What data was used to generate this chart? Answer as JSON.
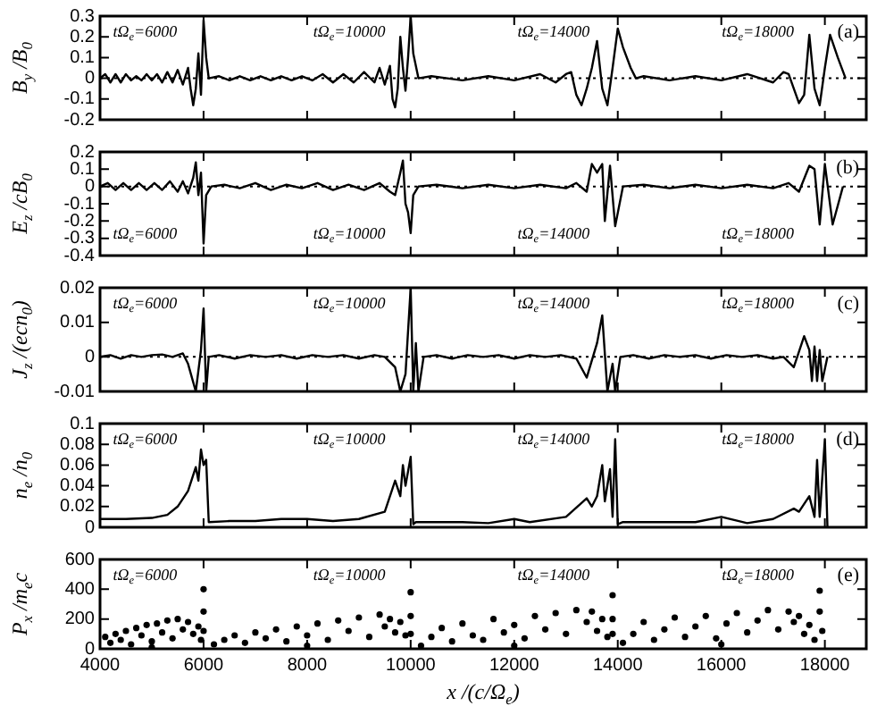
{
  "chart_data": [
    {
      "type": "line",
      "ylabel": "B$_{y}$ /B$_{0}$",
      "xlim": [
        4000,
        18800
      ],
      "xticks": [
        4000,
        6000,
        8000,
        10000,
        12000,
        14000,
        16000,
        18000
      ],
      "ylim": [
        -0.2,
        0.3
      ],
      "yticks": [
        -0.2,
        -0.1,
        0,
        0.1,
        0.2,
        0.3
      ],
      "tick_labels": "y",
      "grid": false,
      "legend": false,
      "marker": "none",
      "line_style": "solid",
      "ref_lines": [
        {
          "axis": "y",
          "value": 0,
          "line_style": "dotted"
        }
      ],
      "annotations": [
        "tΩ$_{e}$=6000",
        "tΩ$_{e}$=10000",
        "tΩ$_{e}$=14000",
        "tΩ$_{e}$=18000",
        "(a)"
      ],
      "series": [
        {
          "color": "#000000",
          "x": [
            4000,
            4100,
            4200,
            4300,
            4400,
            4500,
            4600,
            4700,
            4800,
            4900,
            5000,
            5100,
            5200,
            5300,
            5400,
            5500,
            5600,
            5700,
            5750,
            5800,
            5850,
            5900,
            5950,
            6000,
            6050,
            6100,
            6300,
            6500,
            6700,
            6900,
            7100,
            7300,
            7500,
            7700,
            7900,
            8100,
            8300,
            8500,
            8700,
            8900,
            9100,
            9300,
            9400,
            9500,
            9600,
            9650,
            9700,
            9750,
            9800,
            9850,
            9900,
            9950,
            10000,
            10050,
            10150,
            10400,
            11000,
            11500,
            12000,
            12500,
            12800,
            13000,
            13100,
            13200,
            13300,
            13400,
            13500,
            13600,
            13700,
            13800,
            13900,
            14000,
            14100,
            14250,
            14350,
            14500,
            15000,
            15500,
            16000,
            16500,
            17000,
            17200,
            17300,
            17400,
            17500,
            17600,
            17700,
            17800,
            17900,
            18000,
            18100,
            18250,
            18400
          ],
          "values": [
            0,
            0.02,
            -0.02,
            0.02,
            -0.02,
            0.02,
            -0.01,
            0.01,
            -0.01,
            0.02,
            -0.01,
            0.02,
            -0.02,
            0.03,
            -0.02,
            0.04,
            -0.03,
            0.05,
            -0.05,
            -0.13,
            -0.05,
            0.12,
            -0.08,
            0.28,
            0.1,
            0,
            0.01,
            -0.01,
            0.01,
            -0.01,
            0.01,
            -0.01,
            0.01,
            -0.01,
            0.01,
            -0.01,
            0.02,
            -0.02,
            0.02,
            -0.02,
            0.03,
            -0.02,
            0.05,
            -0.03,
            0.06,
            -0.1,
            -0.14,
            -0.05,
            0.2,
            0.05,
            -0.06,
            0.1,
            0.3,
            0.12,
            0,
            0.01,
            -0.01,
            0.01,
            -0.01,
            0.02,
            -0.02,
            0.02,
            0.03,
            -0.08,
            -0.13,
            -0.05,
            0.05,
            0.18,
            -0.05,
            -0.13,
            0.05,
            0.24,
            0.15,
            0.05,
            0,
            0.01,
            -0.01,
            0.01,
            -0.01,
            0.02,
            -0.02,
            0.03,
            0.02,
            -0.05,
            -0.12,
            -0.08,
            0.21,
            -0.05,
            -0.13,
            0.05,
            0.21,
            0.1,
            0
          ]
        }
      ]
    },
    {
      "type": "line",
      "ylabel": "E$_{z}$ /cB$_{0}$",
      "xlim": [
        4000,
        18800
      ],
      "xticks": [
        4000,
        6000,
        8000,
        10000,
        12000,
        14000,
        16000,
        18000
      ],
      "ylim": [
        -0.4,
        0.2
      ],
      "yticks": [
        -0.4,
        -0.3,
        -0.2,
        -0.1,
        0,
        0.1,
        0.2
      ],
      "tick_labels": "y",
      "grid": false,
      "legend": false,
      "marker": "none",
      "line_style": "solid",
      "ref_lines": [
        {
          "axis": "y",
          "value": 0,
          "line_style": "dotted"
        }
      ],
      "annotations": [
        "tΩ$_{e}$=6000",
        "tΩ$_{e}$=10000",
        "tΩ$_{e}$=14000",
        "tΩ$_{e}$=18000",
        "(b)"
      ],
      "series": [
        {
          "color": "#000000",
          "x": [
            4000,
            4150,
            4300,
            4450,
            4600,
            4750,
            4900,
            5050,
            5200,
            5350,
            5500,
            5600,
            5700,
            5800,
            5850,
            5900,
            5950,
            6000,
            6050,
            6150,
            6400,
            6700,
            7000,
            7300,
            7600,
            7900,
            8200,
            8500,
            8800,
            9100,
            9400,
            9600,
            9700,
            9800,
            9850,
            9900,
            9950,
            10000,
            10050,
            10150,
            10500,
            11000,
            11500,
            12000,
            12500,
            13000,
            13200,
            13400,
            13500,
            13600,
            13700,
            13750,
            13850,
            13950,
            14100,
            14500,
            15000,
            15500,
            16000,
            16500,
            17000,
            17300,
            17500,
            17700,
            17800,
            17900,
            18000,
            18150,
            18350
          ],
          "values": [
            0,
            0.02,
            -0.02,
            0.02,
            -0.02,
            0.02,
            -0.02,
            0.02,
            -0.02,
            0.03,
            -0.03,
            0.03,
            -0.04,
            0.05,
            0.14,
            -0.05,
            0.08,
            -0.33,
            -0.05,
            0,
            0.01,
            -0.01,
            0.02,
            -0.02,
            0.01,
            -0.01,
            0.02,
            -0.02,
            0.01,
            -0.02,
            0.02,
            -0.03,
            -0.05,
            0.08,
            0.15,
            -0.1,
            -0.15,
            -0.27,
            -0.05,
            0,
            0.01,
            -0.01,
            0.01,
            -0.01,
            0.01,
            -0.01,
            0.02,
            -0.03,
            0.13,
            0.08,
            0.13,
            -0.2,
            0.12,
            -0.23,
            0,
            0.01,
            -0.01,
            0.01,
            -0.01,
            0.01,
            -0.01,
            0.02,
            -0.03,
            0.12,
            0.1,
            -0.22,
            0.13,
            -0.22,
            0
          ]
        }
      ]
    },
    {
      "type": "line",
      "ylabel": "J$_{z}$ /(ecn$_{0}$)",
      "xlim": [
        4000,
        18800
      ],
      "xticks": [
        4000,
        6000,
        8000,
        10000,
        12000,
        14000,
        16000,
        18000
      ],
      "ylim": [
        -0.01,
        0.02
      ],
      "yticks": [
        -0.01,
        0,
        0.01,
        0.02
      ],
      "tick_labels": "y",
      "grid": false,
      "legend": false,
      "marker": "none",
      "line_style": "solid",
      "ref_lines": [
        {
          "axis": "y",
          "value": 0,
          "line_style": "dotted"
        }
      ],
      "annotations": [
        "tΩ$_{e}$=6000",
        "tΩ$_{e}$=10000",
        "tΩ$_{e}$=14000",
        "tΩ$_{e}$=18000",
        "(c)"
      ],
      "series": [
        {
          "color": "#000000",
          "x": [
            4000,
            4200,
            4400,
            4600,
            4800,
            5000,
            5200,
            5400,
            5600,
            5700,
            5850,
            5950,
            6000,
            6050,
            6100,
            6300,
            6600,
            6900,
            7200,
            7500,
            7800,
            8100,
            8400,
            8700,
            9000,
            9300,
            9500,
            9700,
            9800,
            9900,
            10000,
            10050,
            10100,
            10150,
            10250,
            10500,
            10800,
            11100,
            11400,
            11700,
            12000,
            12300,
            12600,
            12900,
            13200,
            13400,
            13600,
            13700,
            13800,
            13900,
            13950,
            14050,
            14300,
            14600,
            14900,
            15200,
            15500,
            15800,
            16100,
            16400,
            16700,
            17000,
            17200,
            17400,
            17600,
            17700,
            17750,
            17800,
            17850,
            17900,
            17950,
            18050
          ],
          "values": [
            0,
            0.0005,
            -0.0005,
            0.0005,
            0,
            0.0005,
            0.0007,
            0,
            0.001,
            -0.002,
            -0.01,
            0.002,
            0.014,
            -0.01,
            0,
            0.0005,
            -0.0005,
            0.0005,
            0,
            0.0005,
            -0.0005,
            0.0005,
            0,
            0.0005,
            -0.0005,
            0.0005,
            0,
            -0.003,
            -0.01,
            -0.005,
            0.02,
            -0.01,
            0.004,
            -0.01,
            0,
            0.0005,
            -0.0005,
            0.0005,
            0,
            0.0005,
            -0.0005,
            0.0005,
            0,
            0.0005,
            -0.0005,
            -0.006,
            0.004,
            0.012,
            -0.01,
            -0.002,
            -0.01,
            0,
            0.0005,
            -0.0005,
            0.0005,
            0,
            0.0005,
            -0.0005,
            0.0005,
            0,
            0.0005,
            -0.0005,
            0,
            -0.003,
            0.006,
            0.002,
            -0.007,
            0.003,
            -0.007,
            0.002,
            -0.007,
            0
          ]
        }
      ]
    },
    {
      "type": "line",
      "ylabel": "n$_{e}$ /n$_{0}$",
      "xlim": [
        4000,
        18800
      ],
      "xticks": [
        4000,
        6000,
        8000,
        10000,
        12000,
        14000,
        16000,
        18000
      ],
      "ylim": [
        0,
        0.1
      ],
      "yticks": [
        0,
        0.02,
        0.04,
        0.06,
        0.08,
        0.1
      ],
      "tick_labels": "y",
      "grid": false,
      "legend": false,
      "marker": "none",
      "line_style": "solid",
      "annotations": [
        "tΩ$_{e}$=6000",
        "tΩ$_{e}$=10000",
        "tΩ$_{e}$=14000",
        "tΩ$_{e}$=18000",
        "(d)"
      ],
      "series": [
        {
          "color": "#000000",
          "x": [
            4000,
            4500,
            5000,
            5300,
            5500,
            5700,
            5850,
            5900,
            5950,
            6000,
            6050,
            6100,
            6500,
            7000,
            7500,
            8000,
            8500,
            9000,
            9500,
            9700,
            9800,
            9850,
            9900,
            10000,
            10050,
            10100,
            11000,
            11500,
            12000,
            12300,
            13000,
            13400,
            13500,
            13600,
            13700,
            13750,
            13850,
            13900,
            13950,
            14000,
            14100,
            15000,
            15500,
            16000,
            16500,
            17000,
            17400,
            17500,
            17700,
            17800,
            17850,
            17900,
            18000,
            18050
          ],
          "values": [
            0.008,
            0.008,
            0.009,
            0.012,
            0.02,
            0.035,
            0.058,
            0.045,
            0.075,
            0.06,
            0.065,
            0.005,
            0.006,
            0.006,
            0.008,
            0.008,
            0.006,
            0.008,
            0.015,
            0.045,
            0.03,
            0.06,
            0.04,
            0.068,
            0.003,
            0.005,
            0.005,
            0.004,
            0.008,
            0.005,
            0.01,
            0.028,
            0.02,
            0.03,
            0.06,
            0.025,
            0.056,
            0.01,
            0.085,
            0.003,
            0.005,
            0.005,
            0.005,
            0.01,
            0.004,
            0.008,
            0.018,
            0.015,
            0.03,
            0.01,
            0.065,
            0.01,
            0.085,
            0
          ]
        }
      ]
    },
    {
      "type": "scatter",
      "ylabel": "P$_{x}$ /m$_{e}$c",
      "xlabel": "x /(c/Ω$_{e}$)",
      "xlim": [
        4000,
        18800
      ],
      "xticks": [
        4000,
        6000,
        8000,
        10000,
        12000,
        14000,
        16000,
        18000
      ],
      "ylim": [
        0,
        600
      ],
      "yticks": [
        0,
        200,
        400,
        600
      ],
      "grid": false,
      "legend": false,
      "marker": "circle",
      "annotations": [
        "tΩ$_{e}$=6000",
        "tΩ$_{e}$=10000",
        "tΩ$_{e}$=14000",
        "tΩ$_{e}$=18000",
        "(e)"
      ],
      "series": [
        {
          "color": "#000000",
          "x": [
            4100,
            4200,
            4300,
            4400,
            4500,
            4600,
            4700,
            4800,
            4900,
            5000,
            5100,
            5200,
            5300,
            5400,
            5500,
            5600,
            5700,
            5800,
            5900,
            5950,
            6000,
            6000,
            6000,
            5000,
            6200,
            6400,
            6600,
            6800,
            7000,
            7200,
            7400,
            7600,
            7800,
            8000,
            8200,
            8400,
            8600,
            8800,
            9000,
            9200,
            9400,
            9500,
            9600,
            9700,
            9800,
            9900,
            10000,
            10000,
            10000,
            8000,
            10200,
            10400,
            10600,
            10800,
            11000,
            11200,
            11400,
            11600,
            11800,
            12000,
            12200,
            12400,
            12600,
            12800,
            13000,
            13200,
            13400,
            13500,
            13600,
            13700,
            13800,
            13900,
            13900,
            13900,
            12000,
            14100,
            14300,
            14500,
            14700,
            14900,
            15100,
            15300,
            15500,
            15700,
            15900,
            16100,
            16300,
            16500,
            16700,
            16900,
            17100,
            17300,
            17400,
            17500,
            17600,
            17700,
            17800,
            17900,
            17900,
            17950,
            16000
          ],
          "values": [
            80,
            40,
            100,
            60,
            120,
            30,
            140,
            90,
            160,
            50,
            170,
            110,
            190,
            70,
            200,
            130,
            180,
            100,
            150,
            60,
            400,
            250,
            120,
            10,
            30,
            60,
            90,
            40,
            110,
            70,
            130,
            50,
            150,
            90,
            170,
            60,
            190,
            120,
            210,
            80,
            230,
            150,
            200,
            110,
            180,
            90,
            380,
            220,
            100,
            20,
            20,
            80,
            140,
            50,
            170,
            90,
            60,
            200,
            110,
            160,
            70,
            220,
            130,
            240,
            100,
            260,
            180,
            250,
            120,
            200,
            80,
            360,
            200,
            100,
            20,
            40,
            100,
            180,
            60,
            130,
            210,
            80,
            150,
            220,
            70,
            170,
            240,
            110,
            190,
            260,
            130,
            250,
            180,
            220,
            100,
            160,
            60,
            390,
            250,
            120,
            30
          ]
        }
      ]
    }
  ]
}
